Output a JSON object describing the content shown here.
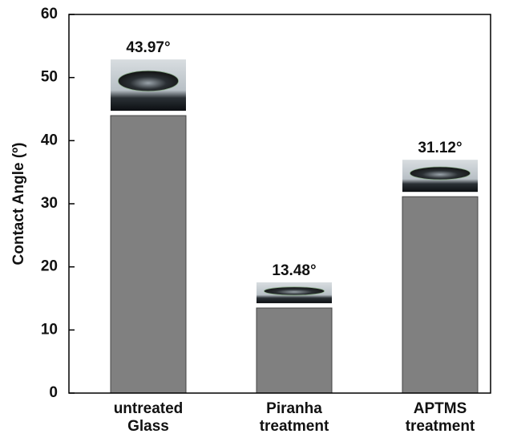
{
  "chart_data": {
    "type": "bar",
    "ylabel": "Contact Angle (º)",
    "categories": [
      [
        "untreated",
        "Glass"
      ],
      [
        "Piranha",
        "treatment"
      ],
      [
        "APTMS",
        "treatment"
      ]
    ],
    "values": [
      43.97,
      13.48,
      31.12
    ],
    "value_labels": [
      "43.97°",
      "13.48°",
      "31.12°"
    ],
    "color": "#808080",
    "ylim": [
      0,
      60
    ],
    "yticks": [
      0,
      10,
      20,
      30,
      40,
      50,
      60
    ],
    "grid": false
  }
}
